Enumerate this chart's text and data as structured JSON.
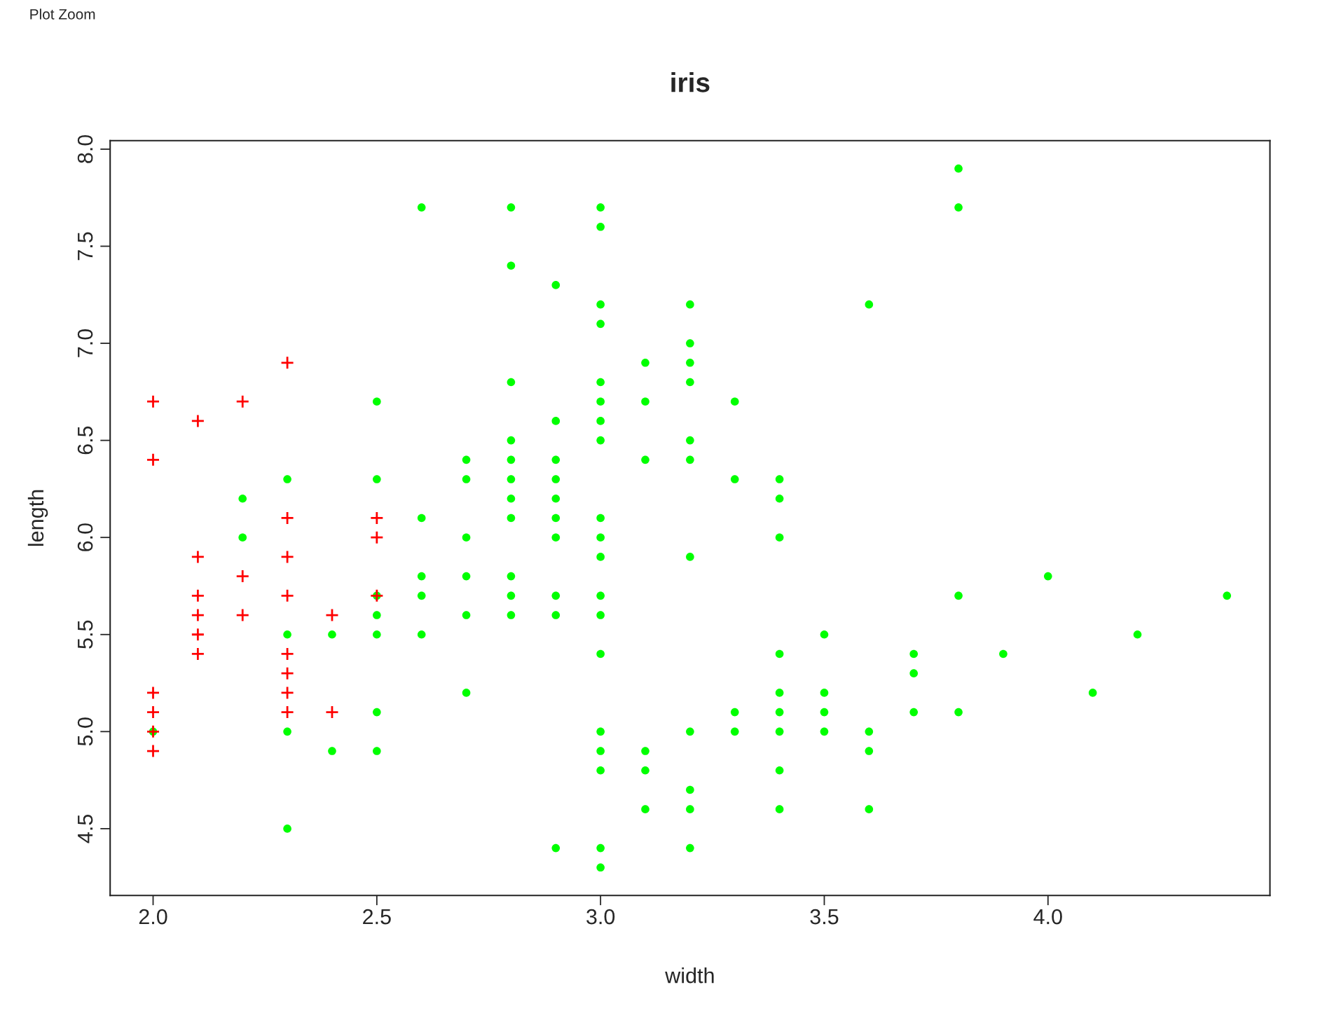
{
  "chart_data": {
    "type": "scatter",
    "title": "iris",
    "xlabel": "width",
    "ylabel": "length",
    "annotations": [
      "Plot Zoom"
    ],
    "xlim": [
      1.904,
      4.496
    ],
    "ylim": [
      4.156,
      8.044
    ],
    "xticks": [
      {
        "value": 2.0,
        "label": "2.0"
      },
      {
        "value": 2.5,
        "label": "2.5"
      },
      {
        "value": 3.0,
        "label": "3.0"
      },
      {
        "value": 3.5,
        "label": "3.5"
      },
      {
        "value": 4.0,
        "label": "4.0"
      }
    ],
    "yticks": [
      {
        "value": 4.5,
        "label": "4.5"
      },
      {
        "value": 5.0,
        "label": "5.0"
      },
      {
        "value": 5.5,
        "label": "5.5"
      },
      {
        "value": 6.0,
        "label": "6.0"
      },
      {
        "value": 6.5,
        "label": "6.5"
      },
      {
        "value": 7.0,
        "label": "7.0"
      },
      {
        "value": 7.5,
        "label": "7.5"
      },
      {
        "value": 8.0,
        "label": "8.0"
      }
    ],
    "grid": false,
    "legend": false,
    "series": [
      {
        "color": "#00ff00",
        "marker": "circle",
        "x": [
          2.0,
          2.2,
          2.2,
          2.3,
          2.3,
          2.3,
          2.3,
          2.4,
          2.4,
          2.5,
          2.5,
          2.5,
          2.5,
          2.5,
          2.5,
          2.5,
          2.6,
          2.6,
          2.6,
          2.6,
          2.6,
          2.7,
          2.7,
          2.7,
          2.7,
          2.7,
          2.7,
          2.8,
          2.8,
          2.8,
          2.8,
          2.8,
          2.8,
          2.8,
          2.8,
          2.8,
          2.8,
          2.8,
          2.9,
          2.9,
          2.9,
          2.9,
          2.9,
          2.9,
          2.9,
          2.9,
          2.9,
          2.9,
          3.0,
          3.0,
          3.0,
          3.0,
          3.0,
          3.0,
          3.0,
          3.0,
          3.0,
          3.0,
          3.0,
          3.0,
          3.0,
          3.0,
          3.0,
          3.0,
          3.0,
          3.0,
          3.0,
          3.1,
          3.1,
          3.1,
          3.1,
          3.1,
          3.1,
          3.2,
          3.2,
          3.2,
          3.2,
          3.2,
          3.2,
          3.2,
          3.2,
          3.2,
          3.2,
          3.2,
          3.3,
          3.3,
          3.3,
          3.3,
          3.4,
          3.4,
          3.4,
          3.4,
          3.4,
          3.4,
          3.4,
          3.4,
          3.4,
          3.5,
          3.5,
          3.5,
          3.5,
          3.6,
          3.6,
          3.6,
          3.6,
          3.7,
          3.7,
          3.7,
          3.8,
          3.8,
          3.8,
          3.8,
          3.9,
          4.0,
          4.1,
          4.2,
          4.4
        ],
        "values": [
          5.0,
          6.2,
          6.0,
          6.3,
          5.5,
          5.0,
          4.5,
          5.5,
          4.9,
          6.7,
          6.3,
          5.7,
          5.6,
          5.5,
          5.1,
          4.9,
          7.7,
          6.1,
          5.8,
          5.7,
          5.5,
          6.4,
          6.3,
          6.0,
          5.8,
          5.6,
          5.2,
          7.7,
          7.4,
          6.8,
          6.5,
          6.4,
          6.3,
          6.2,
          6.1,
          5.8,
          5.7,
          5.6,
          7.3,
          6.6,
          6.4,
          6.3,
          6.2,
          6.1,
          6.0,
          5.7,
          5.6,
          4.4,
          7.7,
          7.6,
          7.2,
          7.1,
          6.8,
          6.7,
          6.6,
          6.5,
          6.1,
          6.0,
          5.9,
          5.7,
          5.6,
          5.4,
          5.0,
          4.9,
          4.8,
          4.4,
          4.3,
          6.9,
          6.7,
          6.4,
          4.9,
          4.8,
          4.6,
          7.2,
          7.0,
          6.9,
          6.8,
          6.5,
          6.4,
          5.9,
          5.0,
          4.7,
          4.6,
          4.4,
          6.7,
          6.3,
          5.1,
          5.0,
          6.3,
          6.2,
          6.0,
          5.4,
          5.2,
          5.1,
          5.0,
          4.8,
          4.6,
          5.5,
          5.2,
          5.1,
          5.0,
          7.2,
          5.0,
          4.9,
          4.6,
          5.4,
          5.3,
          5.1,
          7.9,
          7.7,
          5.7,
          5.1,
          5.4,
          5.8,
          5.2,
          5.5,
          5.7
        ]
      },
      {
        "color": "#ff0000",
        "marker": "cross",
        "x": [
          2.0,
          2.0,
          2.0,
          2.0,
          2.0,
          2.0,
          2.1,
          2.1,
          2.1,
          2.1,
          2.1,
          2.1,
          2.2,
          2.2,
          2.2,
          2.3,
          2.3,
          2.3,
          2.3,
          2.3,
          2.3,
          2.3,
          2.3,
          2.4,
          2.4,
          2.5,
          2.5,
          2.5
        ],
        "values": [
          6.7,
          6.4,
          5.2,
          5.1,
          5.0,
          4.9,
          6.6,
          5.9,
          5.7,
          5.6,
          5.5,
          5.4,
          6.7,
          5.8,
          5.6,
          6.9,
          6.1,
          5.9,
          5.7,
          5.4,
          5.3,
          5.2,
          5.1,
          5.6,
          5.1,
          6.1,
          6.0,
          5.7
        ]
      }
    ]
  }
}
